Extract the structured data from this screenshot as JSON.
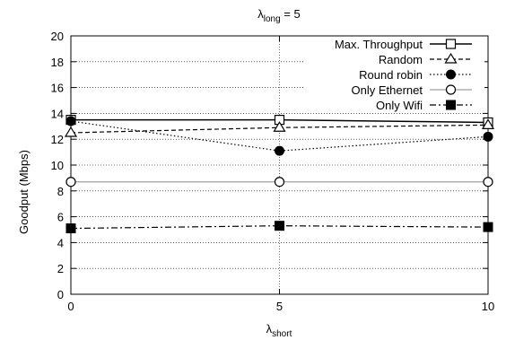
{
  "chart_data": {
    "type": "line",
    "title_main": "λ",
    "title_sub": "long",
    "title_suffix": " = 5",
    "xlabel_main": "λ",
    "xlabel_sub": "short",
    "ylabel": "Goodput (Mbps)",
    "x": [
      0,
      5,
      10
    ],
    "xlim": [
      0,
      10
    ],
    "ylim": [
      0,
      20
    ],
    "xticks": [
      "0",
      "5",
      "10"
    ],
    "yticks": [
      "0",
      "2",
      "4",
      "6",
      "8",
      "10",
      "12",
      "14",
      "16",
      "18",
      "20"
    ],
    "grid": true,
    "legend_position": "top-right",
    "series": [
      {
        "name": "Max. Throughput",
        "values": [
          13.5,
          13.5,
          13.3
        ],
        "marker": "square-open",
        "line": "solid",
        "color": "#000000"
      },
      {
        "name": "Random",
        "values": [
          12.5,
          12.9,
          13.1
        ],
        "marker": "triangle-open",
        "line": "dashed",
        "color": "#000000"
      },
      {
        "name": "Round robin",
        "values": [
          13.4,
          11.1,
          12.2
        ],
        "marker": "circle-filled",
        "line": "dotted",
        "color": "#000000"
      },
      {
        "name": "Only Ethernet",
        "values": [
          8.7,
          8.7,
          8.7
        ],
        "marker": "circle-open",
        "line": "solid-gray",
        "color": "#a0a0a0"
      },
      {
        "name": "Only Wifi",
        "values": [
          5.1,
          5.3,
          5.2
        ],
        "marker": "square-filled",
        "line": "dashdot",
        "color": "#000000"
      }
    ]
  }
}
